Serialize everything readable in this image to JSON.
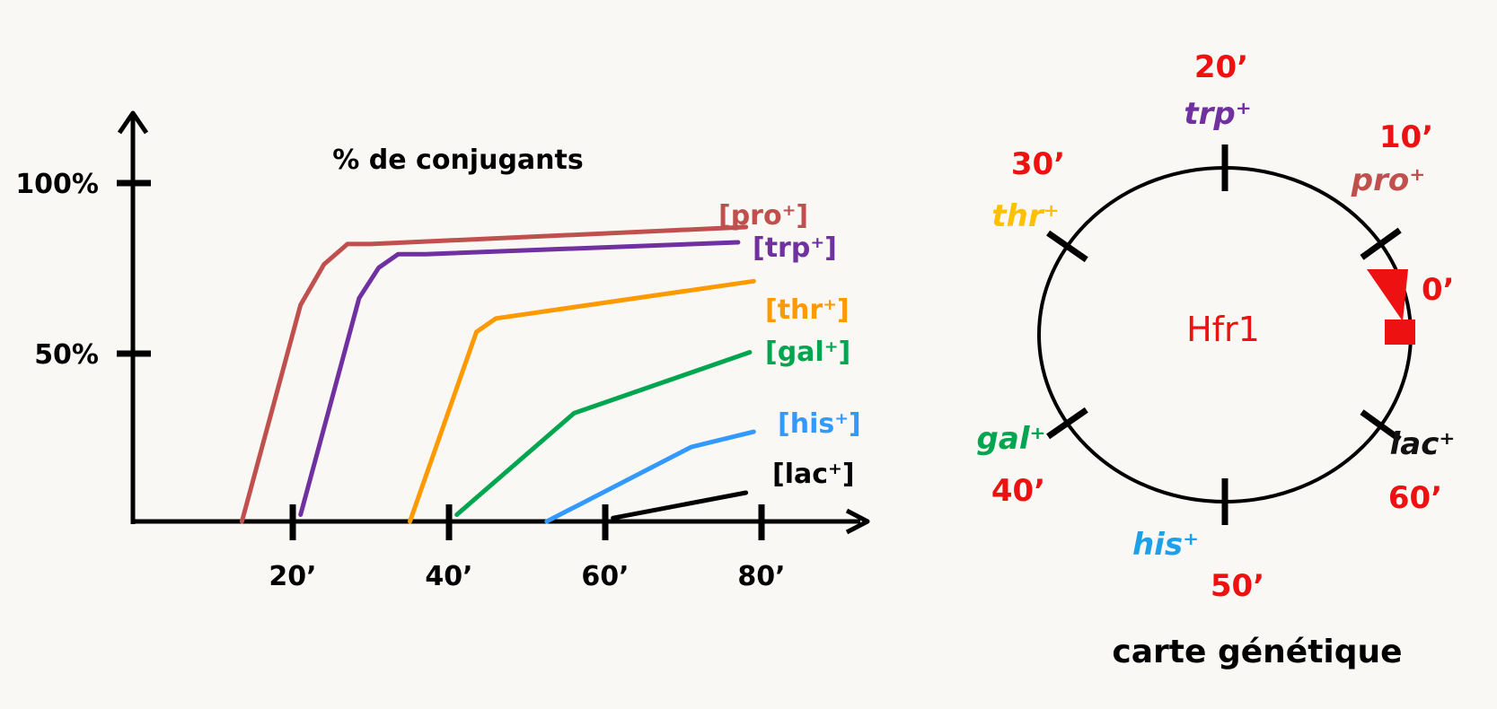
{
  "chart_title": "% de conjugants",
  "chart_data": {
    "type": "line",
    "title": "% de conjugants",
    "x_ticks": [
      "20’",
      "40’",
      "60’",
      "80’"
    ],
    "y_ticks": [
      "100%",
      "50%"
    ],
    "xlim": [
      0,
      90
    ],
    "ylim": [
      0,
      100
    ],
    "series": [
      {
        "name": "pro",
        "color": "#c0504d",
        "points": [
          [
            13.5,
            0
          ],
          [
            21,
            64
          ],
          [
            24,
            76
          ],
          [
            27,
            82
          ],
          [
            30,
            82
          ],
          [
            78,
            87
          ]
        ]
      },
      {
        "name": "trp",
        "color": "#7030a0",
        "points": [
          [
            21,
            2
          ],
          [
            28.5,
            66
          ],
          [
            31,
            75
          ],
          [
            33.5,
            79
          ],
          [
            37,
            79
          ],
          [
            77,
            82.5
          ]
        ]
      },
      {
        "name": "thr",
        "color": "#ff9900",
        "points": [
          [
            35,
            0
          ],
          [
            43.5,
            56
          ],
          [
            46,
            60
          ],
          [
            79,
            71
          ]
        ]
      },
      {
        "name": "gal",
        "color": "#00a550",
        "points": [
          [
            41,
            2
          ],
          [
            56,
            32
          ],
          [
            78.5,
            50
          ]
        ]
      },
      {
        "name": "his",
        "color": "#3399ff",
        "points": [
          [
            52.5,
            0
          ],
          [
            71,
            22
          ],
          [
            79,
            26.5
          ]
        ]
      },
      {
        "name": "lac",
        "color": "#000000",
        "points": [
          [
            61,
            1
          ],
          [
            78,
            8.5
          ]
        ]
      }
    ],
    "labels": [
      {
        "series": "pro",
        "text": "[pro⁺]"
      },
      {
        "series": "trp",
        "text": "[trp⁺]"
      },
      {
        "series": "thr",
        "text": "[thr⁺]"
      },
      {
        "series": "gal",
        "text": "[gal⁺]"
      },
      {
        "series": "his",
        "text": "[his⁺]"
      },
      {
        "series": "lac",
        "text": "[lac⁺]"
      }
    ]
  },
  "map": {
    "center_label": "Hfr1",
    "caption": "carte génétique",
    "origin_time": "0’",
    "markers": [
      {
        "gene": "trp⁺",
        "time": "20’",
        "color": "#7030a0",
        "angle_deg": 90
      },
      {
        "gene": "pro⁺",
        "time": "10’",
        "color": "#c0504d",
        "angle_deg": 33
      },
      {
        "gene": "thr⁺",
        "time": "30’",
        "color": "#ffc000",
        "angle_deg": 148
      },
      {
        "gene": "gal⁺",
        "time": "40’",
        "color": "#00a550",
        "angle_deg": 212
      },
      {
        "gene": "his⁺",
        "time": "50’",
        "color": "#1ea0e6",
        "angle_deg": 270
      },
      {
        "gene": "lac⁺",
        "time": "60’",
        "color": "#111111",
        "angle_deg": 327
      }
    ]
  }
}
